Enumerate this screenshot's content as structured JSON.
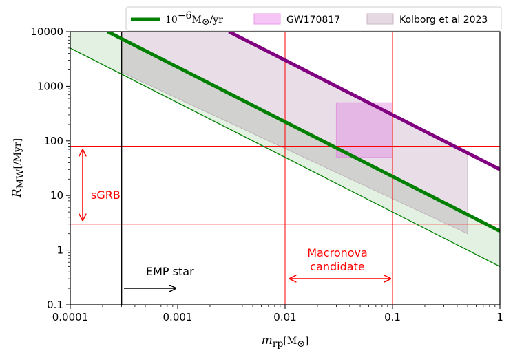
{
  "chart_data": {
    "type": "line",
    "xscale": "log",
    "yscale": "log",
    "xlim": [
      0.0001,
      1
    ],
    "ylim": [
      0.1,
      10000
    ],
    "grid": false,
    "legend_placement": "top",
    "xlabel_parts": {
      "var": "m",
      "sub": "rp",
      "unit": "[M",
      "sun": "⊙",
      "close": "]"
    },
    "ylabel_parts": {
      "var": "R",
      "sub": "MW",
      "unit": "[/Myr]"
    },
    "x_ticks": [
      0.0001,
      0.001,
      0.01,
      0.1,
      1
    ],
    "x_tick_labels": [
      "0.0001",
      "0.001",
      "0.01",
      "0.1",
      "1"
    ],
    "y_ticks": [
      0.1,
      1,
      10,
      100,
      1000,
      10000
    ],
    "y_tick_labels": [
      "0.1",
      "1",
      "10",
      "100",
      "1000",
      "10000"
    ],
    "legend": {
      "green_line": {
        "base": "10",
        "exp": "−6",
        "unit": "M",
        "sun": "⊙",
        "tail": "/yr"
      },
      "gw": "GW170817",
      "kolborg": "Kolborg et al 2023"
    },
    "series": [
      {
        "name": "green-main",
        "color": "#007f00",
        "width": 5,
        "points": [
          [
            0.0002234,
            10000
          ],
          [
            1,
            2.234
          ]
        ]
      },
      {
        "name": "green-lower",
        "color": "#007f00",
        "width": 1.3,
        "points": [
          [
            0.0001,
            5000
          ],
          [
            1,
            0.5
          ]
        ]
      },
      {
        "name": "purple",
        "color": "#800080",
        "width": 5,
        "points": [
          [
            0.003,
            10000
          ],
          [
            1,
            30
          ]
        ]
      }
    ],
    "bands": [
      {
        "name": "green-band",
        "color": "#007f00",
        "opacity": 0.11,
        "polygon": [
          [
            0.0001,
            10000
          ],
          [
            0.0002234,
            10000
          ],
          [
            1,
            2.234
          ],
          [
            1,
            0.5
          ],
          [
            0.0001,
            5000
          ]
        ]
      },
      {
        "name": "kolborg-band",
        "color": "#7a3a6e",
        "opacity": 0.17,
        "polygon": [
          [
            0.0003,
            10000
          ],
          [
            0.003,
            10000
          ],
          [
            0.5,
            60
          ],
          [
            0.5,
            2
          ],
          [
            0.0003,
            1800
          ]
        ]
      },
      {
        "name": "gw-box",
        "color": "#e088e0",
        "opacity": 0.45,
        "polygon": [
          [
            0.03,
            50
          ],
          [
            0.1,
            50
          ],
          [
            0.1,
            500
          ],
          [
            0.03,
            500
          ]
        ]
      }
    ],
    "ref_lines": [
      {
        "orient": "h",
        "value": 80,
        "color": "#ff0000"
      },
      {
        "orient": "h",
        "value": 3,
        "color": "#ff0000"
      },
      {
        "orient": "v",
        "value": 0.01,
        "color": "#ff0000"
      },
      {
        "orient": "v",
        "value": 0.1,
        "color": "#ff0000"
      },
      {
        "orient": "v",
        "value": 0.0003,
        "color": "#000000"
      }
    ],
    "annotations": {
      "sgrb": "sGRB",
      "macronova_1": "Macronova",
      "macronova_2": "candidate",
      "emp": "EMP star"
    }
  }
}
